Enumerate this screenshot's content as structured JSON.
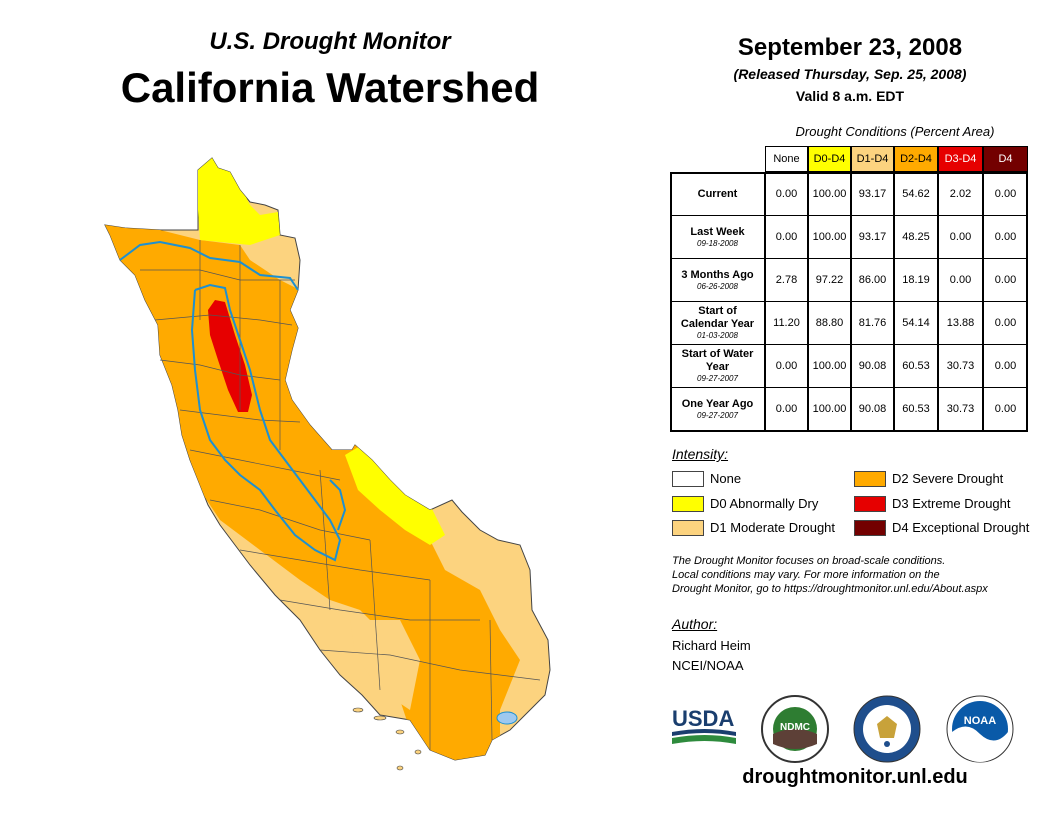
{
  "header": {
    "subtitle": "U.S. Drought Monitor",
    "title": "California Watershed",
    "date": "September 23, 2008",
    "released": "(Released Thursday, Sep. 25, 2008)",
    "valid": "Valid 8 a.m. EDT"
  },
  "table": {
    "caption": "Drought Conditions (Percent Area)",
    "columns": [
      "None",
      "D0-D4",
      "D1-D4",
      "D2-D4",
      "D3-D4",
      "D4"
    ],
    "column_colors": [
      "#ffffff",
      "#ffff00",
      "#fcd37f",
      "#ffaa00",
      "#e60000",
      "#730000"
    ],
    "rows": [
      {
        "label": "Current",
        "date": "",
        "values": [
          "0.00",
          "100.00",
          "93.17",
          "54.62",
          "2.02",
          "0.00"
        ]
      },
      {
        "label": "Last Week",
        "date": "09-18-2008",
        "values": [
          "0.00",
          "100.00",
          "93.17",
          "48.25",
          "0.00",
          "0.00"
        ]
      },
      {
        "label": "3 Months Ago",
        "date": "06-26-2008",
        "values": [
          "2.78",
          "97.22",
          "86.00",
          "18.19",
          "0.00",
          "0.00"
        ]
      },
      {
        "label": "Start of Calendar Year",
        "date": "01-03-2008",
        "values": [
          "11.20",
          "88.80",
          "81.76",
          "54.14",
          "13.88",
          "0.00"
        ]
      },
      {
        "label": "Start of Water Year",
        "date": "09-27-2007",
        "values": [
          "0.00",
          "100.00",
          "90.08",
          "60.53",
          "30.73",
          "0.00"
        ]
      },
      {
        "label": "One Year Ago",
        "date": "09-27-2007",
        "values": [
          "0.00",
          "100.00",
          "90.08",
          "60.53",
          "30.73",
          "0.00"
        ]
      }
    ]
  },
  "legend": {
    "title": "Intensity:",
    "items": [
      {
        "label": "None",
        "color": "#ffffff"
      },
      {
        "label": "D0 Abnormally Dry",
        "color": "#ffff00"
      },
      {
        "label": "D1 Moderate Drought",
        "color": "#fcd37f"
      },
      {
        "label": "D2 Severe Drought",
        "color": "#ffaa00"
      },
      {
        "label": "D3 Extreme Drought",
        "color": "#e60000"
      },
      {
        "label": "D4 Exceptional Drought",
        "color": "#730000"
      }
    ]
  },
  "note": {
    "line1": "The Drought Monitor focuses on broad-scale conditions.",
    "line2": "Local conditions may vary. For more information on the",
    "line3": "Drought Monitor, go to https://droughtmonitor.unl.edu/About.aspx"
  },
  "author": {
    "title": "Author:",
    "name": "Richard Heim",
    "org": "NCEI/NOAA"
  },
  "logos": {
    "usda": "USDA",
    "ndmc": "NDMC",
    "noaa": "NOAA"
  },
  "footer": {
    "site": "droughtmonitor.unl.edu"
  }
}
